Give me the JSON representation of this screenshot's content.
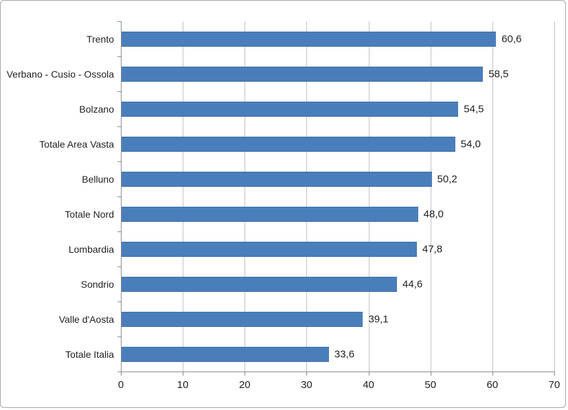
{
  "chart_data": {
    "type": "bar",
    "orientation": "horizontal",
    "title": "",
    "xlabel": "",
    "ylabel": "",
    "categories": [
      "Trento",
      "Verbano - Cusio - Ossola",
      "Bolzano",
      "Totale Area Vasta",
      "Belluno",
      "Totale Nord",
      "Lombardia",
      "Sondrio",
      "Valle d'Aosta",
      "Totale Italia"
    ],
    "values": [
      60.6,
      58.5,
      54.5,
      54.0,
      50.2,
      48.0,
      47.8,
      44.6,
      39.1,
      33.6
    ],
    "data_labels": [
      "60,6",
      "58,5",
      "54,5",
      "54,0",
      "50,2",
      "48,0",
      "47,8",
      "44,6",
      "39,1",
      "33,6"
    ],
    "x_ticks": [
      0,
      10,
      20,
      30,
      40,
      50,
      60,
      70
    ],
    "x_tick_labels": [
      "0",
      "10",
      "20",
      "30",
      "40",
      "50",
      "60",
      "70"
    ],
    "xlim": [
      0,
      70
    ],
    "grid": "vertical-major",
    "legend": "none"
  },
  "colors": {
    "bar_fill": "#4a7ebb",
    "bar_border": "#3d6ea8",
    "gridline": "#c3c3c3",
    "axis_line": "#8e8e8e",
    "frame_border": "#a6a6a6",
    "text": "#1f1f1f",
    "background": "#ffffff"
  }
}
